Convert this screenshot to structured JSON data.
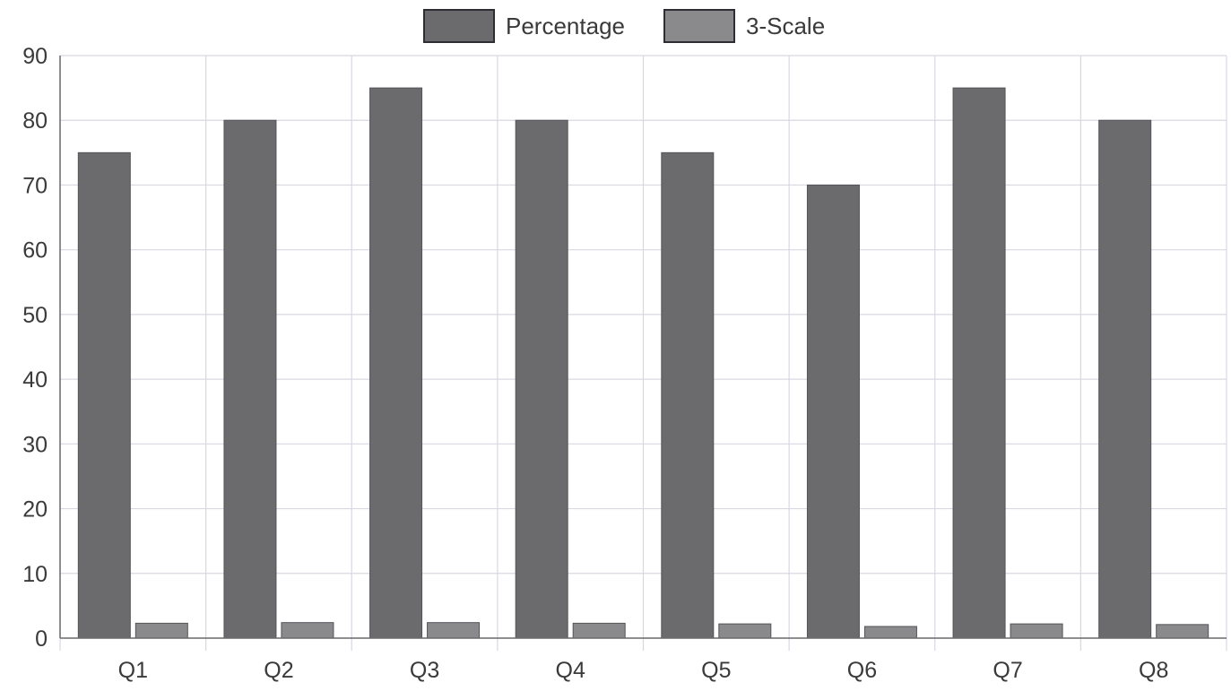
{
  "chart_data": {
    "type": "bar",
    "title": "",
    "xlabel": "",
    "ylabel": "",
    "ylim": [
      0,
      90
    ],
    "yticks": [
      "0",
      "10",
      "20",
      "30",
      "40",
      "50",
      "60",
      "70",
      "80",
      "90"
    ],
    "categories": [
      "Q1",
      "Q2",
      "Q3",
      "Q4",
      "Q5",
      "Q6",
      "Q7",
      "Q8"
    ],
    "series": [
      {
        "name": "Percentage",
        "color": "#6b6a6c",
        "values": [
          75,
          80,
          85,
          80,
          75,
          70,
          85,
          80
        ]
      },
      {
        "name": "3-Scale",
        "color": "#8a898b",
        "values": [
          2.3,
          2.4,
          2.4,
          2.3,
          2.2,
          1.8,
          2.2,
          2.1
        ]
      }
    ],
    "grid": true,
    "legend_position": "top-center"
  }
}
